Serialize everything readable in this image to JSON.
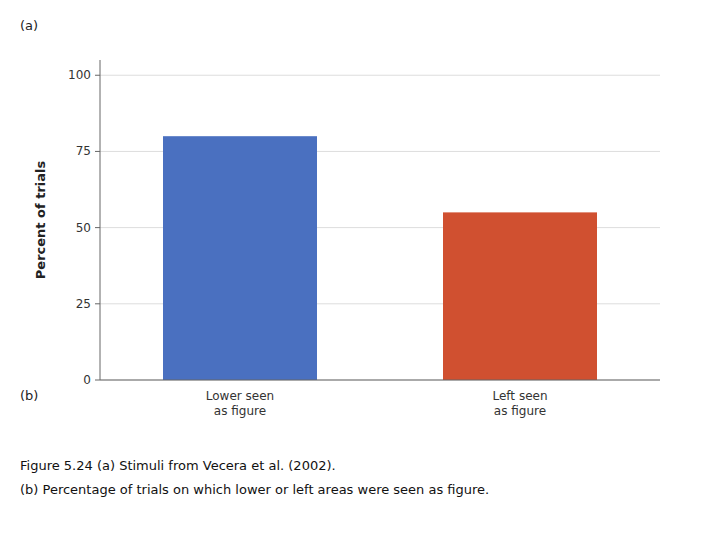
{
  "chart_data": {
    "type": "bar",
    "categories": [
      "Lower seen\nas figure",
      "Left seen\nas figure"
    ],
    "values": [
      80,
      55
    ],
    "colors": [
      "#4a70c0",
      "#d05030"
    ],
    "ylabel": "Percent of trials",
    "ylim": [
      0,
      105
    ],
    "yticks": [
      0,
      25,
      50,
      75,
      100
    ],
    "grid": true,
    "annotations": [
      "(a)",
      "(b)",
      "Figure 5.24 (a) Stimuli from Vecera et al. (2002).",
      "(b) Percentage of trials on which lower or left areas were seen as figure."
    ]
  }
}
